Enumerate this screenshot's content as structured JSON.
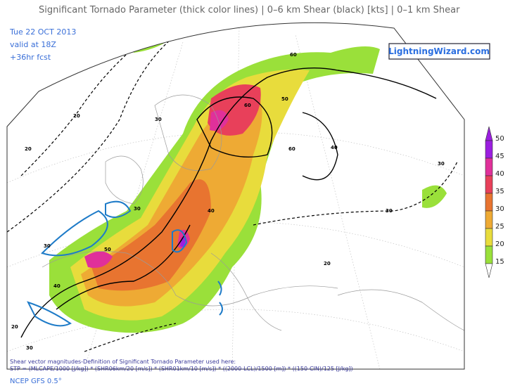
{
  "header": {
    "title": "Significant Tornado Parameter (thick color lines) | 0–6 km Shear (black) [kts] | 0–1 km Shear",
    "date": "Tue 22 OCT 2013",
    "valid": "valid at 18Z",
    "forecast": "+36hr fcst",
    "website": "LightningWizard.com"
  },
  "colorbar": {
    "labels": [
      50,
      45,
      40,
      35,
      30,
      25,
      20,
      15
    ],
    "colors": [
      "#9b1ee0",
      "#e0309a",
      "#e8405a",
      "#e87430",
      "#eeaa34",
      "#e8dc3c",
      "#9ae03a"
    ]
  },
  "contour_labels": [
    30,
    50,
    20,
    30,
    20,
    60,
    60,
    50,
    60,
    40,
    30,
    30,
    30,
    40,
    50,
    40,
    30,
    20,
    20,
    30
  ],
  "footer": {
    "definition": "Shear vector magnitudes-Definition of Significant Tornado Parameter used here:",
    "formula": "STP = (MLCAPE/1000 [J/kg]) * (SHR06km/20 [m/s]) * (SHR01km/10 [m/s]) * ((2000-LCL)/1500 [m]) * ((150-CIN)/125 [J/kg])",
    "model": "NCEP GFS 0.5°"
  }
}
